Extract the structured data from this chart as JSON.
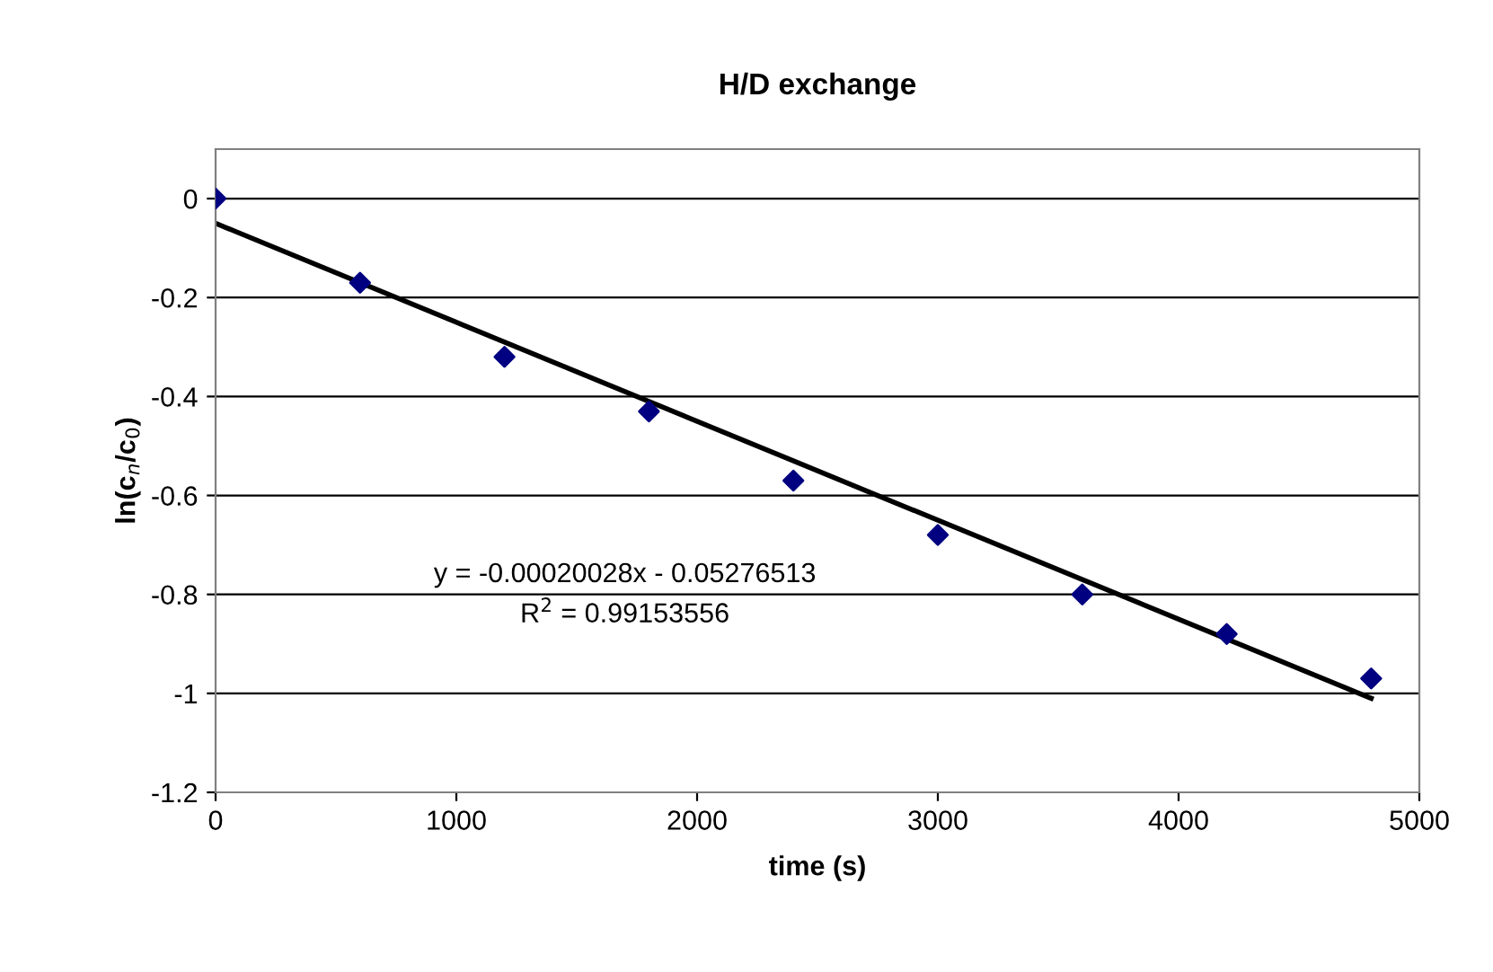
{
  "chart_data": {
    "type": "scatter",
    "title": "H/D exchange",
    "xlabel": "time (s)",
    "ylabel": "ln(c$_{n}$/c$_{0}$)",
    "x": [
      0,
      600,
      1200,
      1800,
      2400,
      3000,
      3600,
      4200,
      4800
    ],
    "series": [
      {
        "color": "#000080",
        "marker": "diamond",
        "values": [
          0,
          -0.17,
          -0.32,
          -0.43,
          -0.57,
          -0.68,
          -0.8,
          -0.88,
          -0.97
        ]
      },
      {
        "type": "line",
        "color": "#000000",
        "marker": "none",
        "x": [
          0,
          4800
        ],
        "values": [
          -0.05,
          -1.01
        ]
      }
    ],
    "annotations": [
      "y = -0.00020028x - 0.05276513",
      "R$^{2}$ = 0.99153556"
    ],
    "xlim": [
      0,
      5000
    ],
    "xticks": [
      0,
      1000,
      2000,
      3000,
      4000,
      5000
    ],
    "ylim": [
      -1.2,
      0.1
    ],
    "yticks": [
      -1.2,
      -1,
      -0.8,
      -0.6,
      -0.4,
      -0.2,
      0
    ],
    "grid": "y",
    "legend": false
  }
}
